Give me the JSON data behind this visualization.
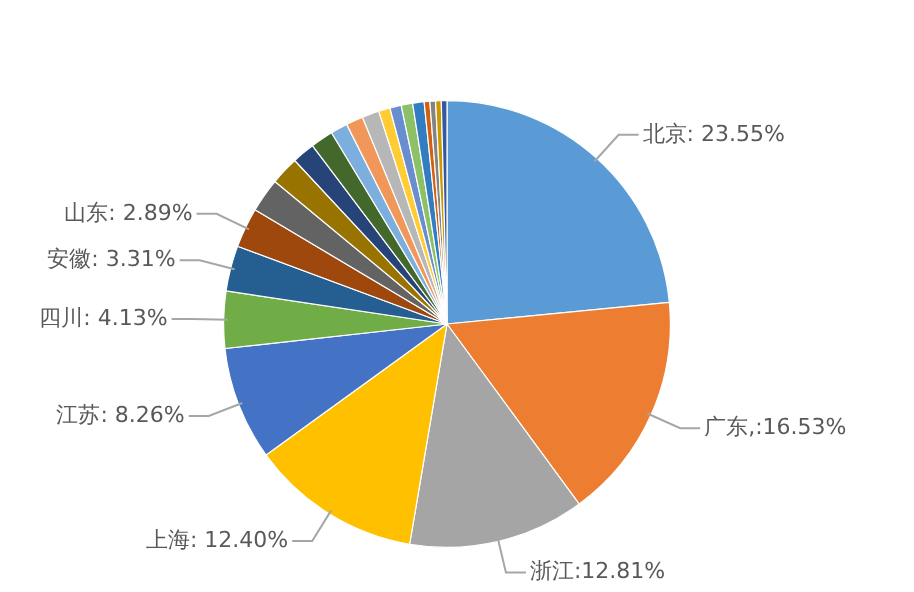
{
  "chart_data": {
    "type": "pie",
    "categories": [
      "北京",
      "广东",
      "浙江",
      "上海",
      "江苏",
      "四川",
      "安徽",
      "山东",
      null,
      null,
      null,
      null,
      null,
      null,
      null,
      null,
      null,
      null,
      null,
      null,
      null,
      null,
      null
    ],
    "values": [
      23.55,
      16.53,
      12.81,
      12.4,
      8.26,
      4.13,
      3.31,
      2.89,
      2.48,
      2.07,
      1.65,
      1.65,
      1.24,
      1.24,
      1.24,
      0.83,
      0.83,
      0.83,
      0.83,
      0.41,
      0.41,
      0.41,
      0.41
    ],
    "value_labels": [
      ": 23.55%",
      ",:16.53%",
      ":12.81%",
      ": 12.40%",
      ": 8.26%",
      ": 4.13%",
      ": 3.31%",
      ": 2.89%",
      null,
      null,
      null,
      null,
      null,
      null,
      null,
      null,
      null,
      null,
      null,
      null,
      null,
      null,
      null
    ],
    "colors": [
      "#5b9bd5",
      "#ed7d31",
      "#a5a5a5",
      "#ffc000",
      "#4472c4",
      "#70ad47",
      "#255e91",
      "#9e480e",
      "#636363",
      "#997300",
      "#264478",
      "#43682b",
      "#7cafdd",
      "#f1975a",
      "#b7b7b7",
      "#ffcd33",
      "#698ed0",
      "#8cc168",
      "#327dc2",
      "#d26012",
      "#848484",
      "#cc9a00",
      "#335aa1"
    ],
    "legend": false
  }
}
